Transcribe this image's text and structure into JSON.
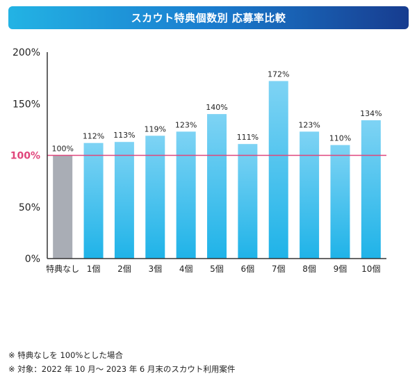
{
  "chart_data": {
    "type": "bar",
    "title": "スカウト特典個数別 応募率比較",
    "categories": [
      "特典なし",
      "1個",
      "2個",
      "3個",
      "4個",
      "5個",
      "6個",
      "7個",
      "8個",
      "9個",
      "10個"
    ],
    "values": [
      100,
      112,
      113,
      119,
      123,
      140,
      111,
      172,
      123,
      110,
      134
    ],
    "value_labels": [
      "100%",
      "112%",
      "113%",
      "119%",
      "123%",
      "140%",
      "111%",
      "172%",
      "123%",
      "110%",
      "134%"
    ],
    "yticks": [
      0,
      50,
      100,
      150,
      200
    ],
    "ytick_labels": [
      "0%",
      "50%",
      "100%",
      "150%",
      "200%"
    ],
    "ylim": [
      0,
      200
    ],
    "reference_line": 100,
    "xlabel": "",
    "ylabel": "",
    "colors": {
      "baseline_bar": "#a9adb5",
      "bar_top": "#7ed3f4",
      "bar_bottom": "#1fb3e8",
      "reference_line": "#e0457b",
      "reference_label": "#e0457b",
      "axis": "#333333"
    }
  },
  "notes": [
    "※ 特典なしを 100%とした場合",
    "※ 対象：2022 年 10 月～ 2023 年 6 月末のスカウト利用案件"
  ]
}
